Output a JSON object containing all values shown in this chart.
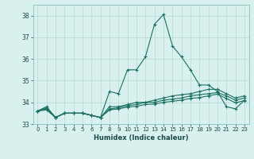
{
  "xlabel": "Humidex (Indice chaleur)",
  "bg_color": "#d8f0ee",
  "grid_color": "#b8d8d4",
  "line_color": "#1a7060",
  "x_labels": [
    "0",
    "1",
    "2",
    "3",
    "4",
    "5",
    "6",
    "7",
    "8",
    "9",
    "10",
    "11",
    "12",
    "13",
    "14",
    "15",
    "16",
    "17",
    "18",
    "19",
    "20",
    "21",
    "22",
    "23"
  ],
  "ylim": [
    33.0,
    38.5
  ],
  "xlim": [
    -0.5,
    23.5
  ],
  "yticks": [
    33,
    34,
    35,
    36,
    37,
    38
  ],
  "series": [
    [
      33.6,
      33.8,
      33.3,
      33.5,
      33.5,
      33.5,
      33.4,
      33.3,
      34.5,
      34.4,
      35.5,
      35.5,
      36.1,
      37.6,
      38.05,
      36.6,
      36.1,
      35.5,
      34.8,
      34.8,
      34.5,
      33.8,
      33.7,
      34.1
    ],
    [
      33.6,
      33.75,
      33.3,
      33.5,
      33.5,
      33.5,
      33.4,
      33.3,
      33.8,
      33.8,
      33.9,
      34.0,
      34.0,
      34.1,
      34.2,
      34.3,
      34.35,
      34.4,
      34.5,
      34.6,
      34.6,
      34.4,
      34.2,
      34.3
    ],
    [
      33.6,
      33.7,
      33.3,
      33.5,
      33.5,
      33.5,
      33.4,
      33.3,
      33.7,
      33.75,
      33.85,
      33.9,
      34.0,
      34.0,
      34.1,
      34.15,
      34.2,
      34.3,
      34.35,
      34.4,
      34.45,
      34.3,
      34.1,
      34.2
    ],
    [
      33.6,
      33.65,
      33.3,
      33.5,
      33.5,
      33.5,
      33.4,
      33.3,
      33.65,
      33.7,
      33.78,
      33.82,
      33.9,
      33.92,
      34.0,
      34.05,
      34.1,
      34.18,
      34.22,
      34.3,
      34.38,
      34.18,
      33.98,
      34.08
    ]
  ]
}
